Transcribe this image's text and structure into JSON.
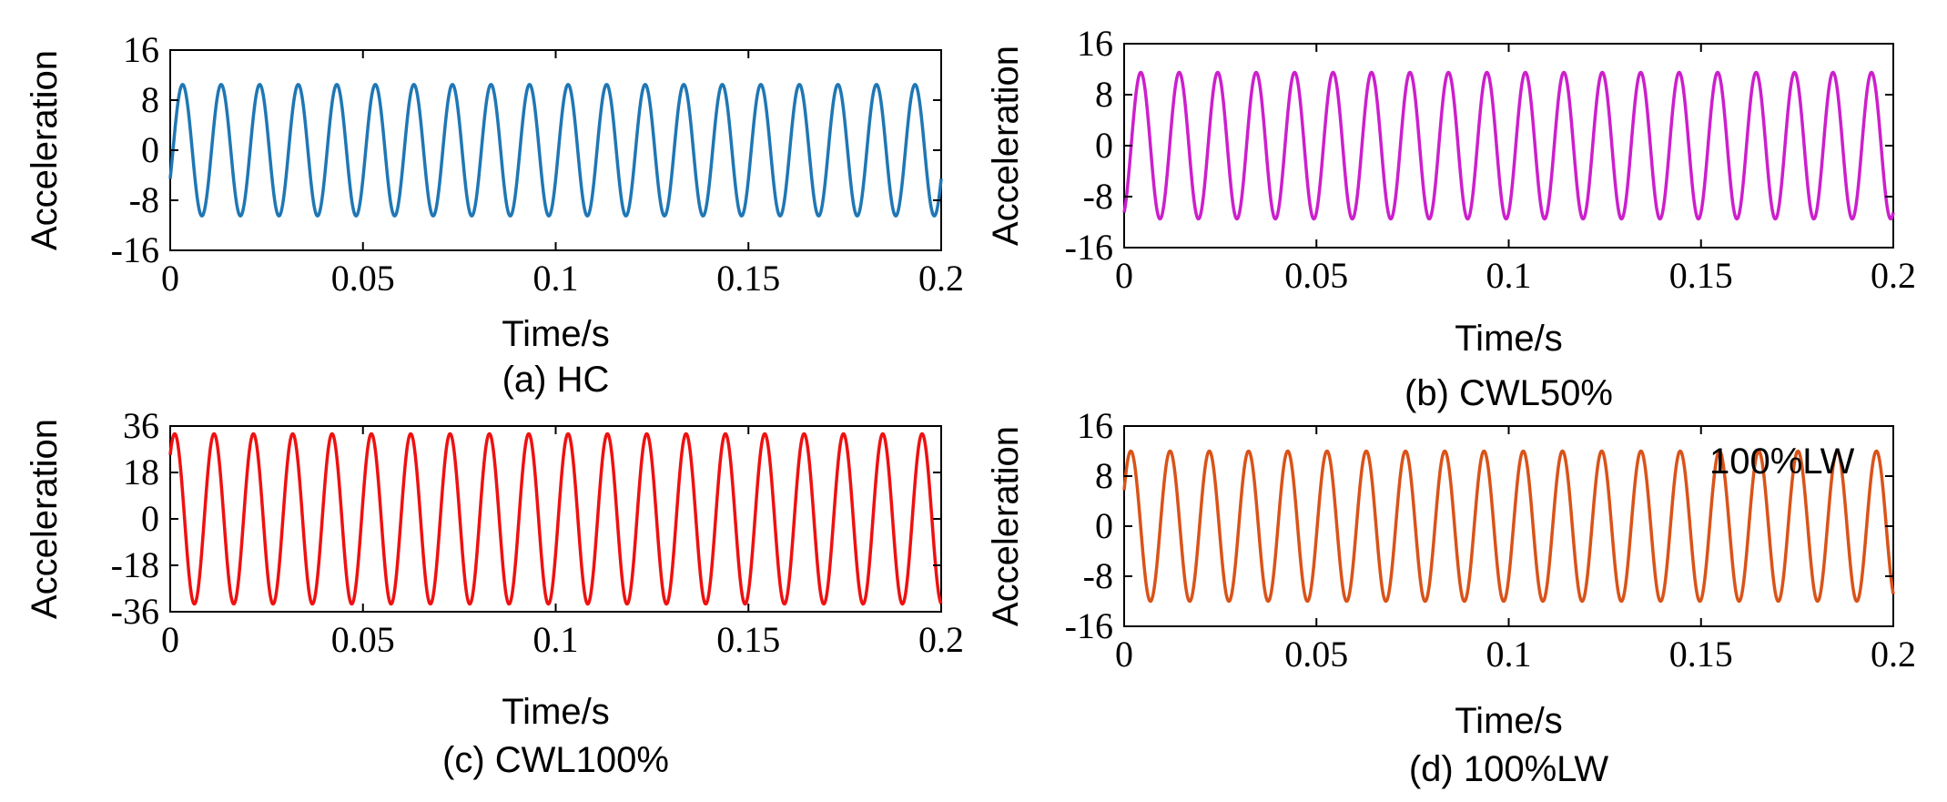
{
  "chart_data": [
    {
      "id": "a",
      "type": "line",
      "caption": "(a) HC",
      "xlabel": "Time/s",
      "ylabel": "Acceleration",
      "xlim": [
        0,
        0.2
      ],
      "ylim": [
        -16,
        16
      ],
      "xticks": [
        0,
        0.05,
        0.1,
        0.15,
        0.2
      ],
      "xtick_labels": [
        "0",
        "0.05",
        "0.1",
        "0.15",
        "0.2"
      ],
      "yticks": [
        16,
        8,
        0,
        -8,
        -16
      ],
      "ytick_labels": [
        "16",
        "8",
        "0",
        "-8",
        "-16"
      ],
      "series": [
        {
          "name": "HC",
          "color": "#1f77b4",
          "amplitude": 10.5,
          "frequency_hz": 100,
          "phase_rad": -0.45,
          "x_start": 0,
          "x_end": 0.2
        }
      ],
      "annotation": ""
    },
    {
      "id": "b",
      "type": "line",
      "caption": "(b) CWL50%",
      "xlabel": "Time/s",
      "ylabel": "Acceleration",
      "xlim": [
        0,
        0.2
      ],
      "ylim": [
        -16,
        16
      ],
      "xticks": [
        0,
        0.05,
        0.1,
        0.15,
        0.2
      ],
      "xtick_labels": [
        "0",
        "0.05",
        "0.1",
        "0.15",
        "0.2"
      ],
      "yticks": [
        16,
        8,
        0,
        -8,
        -16
      ],
      "ytick_labels": [
        "16",
        "8",
        "0",
        "-8",
        "-16"
      ],
      "series": [
        {
          "name": "CWL50%",
          "color": "#cc1fcc",
          "amplitude": 11.5,
          "frequency_hz": 100,
          "phase_rad": -1.15,
          "x_start": 0,
          "x_end": 0.2
        }
      ],
      "annotation": ""
    },
    {
      "id": "c",
      "type": "line",
      "caption": "(c) CWL100%",
      "xlabel": "Time/s",
      "ylabel": "Acceleration",
      "xlim": [
        0,
        0.2
      ],
      "ylim": [
        -36,
        36
      ],
      "xticks": [
        0,
        0.05,
        0.1,
        0.15,
        0.2
      ],
      "xtick_labels": [
        "0",
        "0.05",
        "0.1",
        "0.15",
        "0.2"
      ],
      "yticks": [
        36,
        18,
        0,
        -18,
        -36
      ],
      "ytick_labels": [
        "36",
        "18",
        "0",
        "-18",
        "-36"
      ],
      "series": [
        {
          "name": "CWL100%",
          "color": "#ee1111",
          "amplitude": 33,
          "frequency_hz": 98,
          "phase_rad": 0.85,
          "x_start": 0,
          "x_end": 0.2
        }
      ],
      "annotation": ""
    },
    {
      "id": "d",
      "type": "line",
      "caption": "(d) 100%LW",
      "xlabel": "Time/s",
      "ylabel": "Acceleration",
      "xlim": [
        0,
        0.2
      ],
      "ylim": [
        -16,
        16
      ],
      "xticks": [
        0,
        0.05,
        0.1,
        0.15,
        0.2
      ],
      "xtick_labels": [
        "0",
        "0.05",
        "0.1",
        "0.15",
        "0.2"
      ],
      "yticks": [
        16,
        8,
        0,
        -8,
        -16
      ],
      "ytick_labels": [
        "16",
        "8",
        "0",
        "-8",
        "-16"
      ],
      "series": [
        {
          "name": "100%LW",
          "color": "#d95319",
          "amplitude": 12,
          "frequency_hz": 98,
          "phase_rad": 0.5,
          "x_start": 0,
          "x_end": 0.2
        }
      ],
      "annotation": "100%LW"
    }
  ]
}
